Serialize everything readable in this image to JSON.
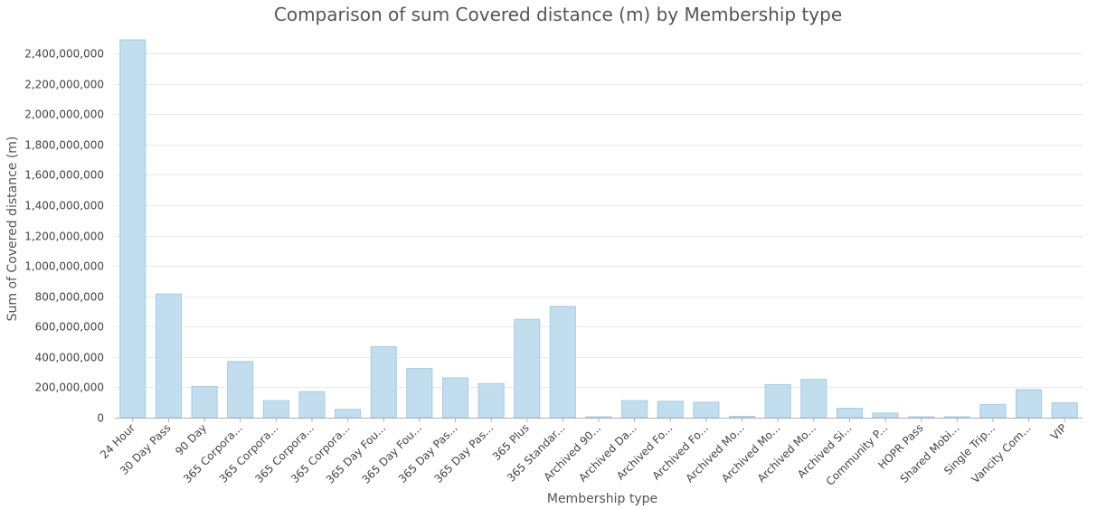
{
  "chart_data": {
    "type": "bar",
    "title": "Comparison of sum Covered distance (m) by Membership type",
    "xlabel": "Membership type",
    "ylabel": "Sum of Covered distance (m)",
    "ylim": [
      0,
      2490000000
    ],
    "yticks": [
      0,
      200000000,
      400000000,
      600000000,
      800000000,
      1000000000,
      1200000000,
      1400000000,
      1600000000,
      1800000000,
      2000000000,
      2200000000,
      2400000000
    ],
    "ytick_labels": [
      "0",
      "200,000,000",
      "400,000,000",
      "600,000,000",
      "800,000,000",
      "1,000,000,000",
      "1,200,000,000",
      "1,400,000,000",
      "1,600,000,000",
      "1,800,000,000",
      "2,000,000,000",
      "2,200,000,000",
      "2,400,000,000"
    ],
    "grid": true,
    "categories": [
      "24 Hour",
      "30 Day Pass",
      "90 Day",
      "365 Corpora...",
      "365 Corpora...",
      "365 Corpora...",
      "365 Corpora...",
      "365 Day Fou...",
      "365 Day Fou...",
      "365 Day Pas...",
      "365 Day Pas...",
      "365 Plus",
      "365 Standar...",
      "Archived 90...",
      "Archived Da...",
      "Archived Fo...",
      "Archived Fo...",
      "Archived Mo...",
      "Archived Mo...",
      "Archived Mo...",
      "Archived Si...",
      "Community P...",
      "HOPR Pass",
      "Shared Mobi...",
      "Single Trip...",
      "Vancity Com...",
      "VIP"
    ],
    "values": [
      2490000000,
      815000000,
      205000000,
      370000000,
      112000000,
      172000000,
      55000000,
      468000000,
      325000000,
      262000000,
      225000000,
      648000000,
      733000000,
      2000000,
      112000000,
      108000000,
      102000000,
      9000000,
      218000000,
      252000000,
      62000000,
      30000000,
      2000000,
      2000000,
      88000000,
      185000000,
      98000000
    ],
    "bar_color": "#c2dded",
    "bar_edge_color": "#a6cce3"
  }
}
